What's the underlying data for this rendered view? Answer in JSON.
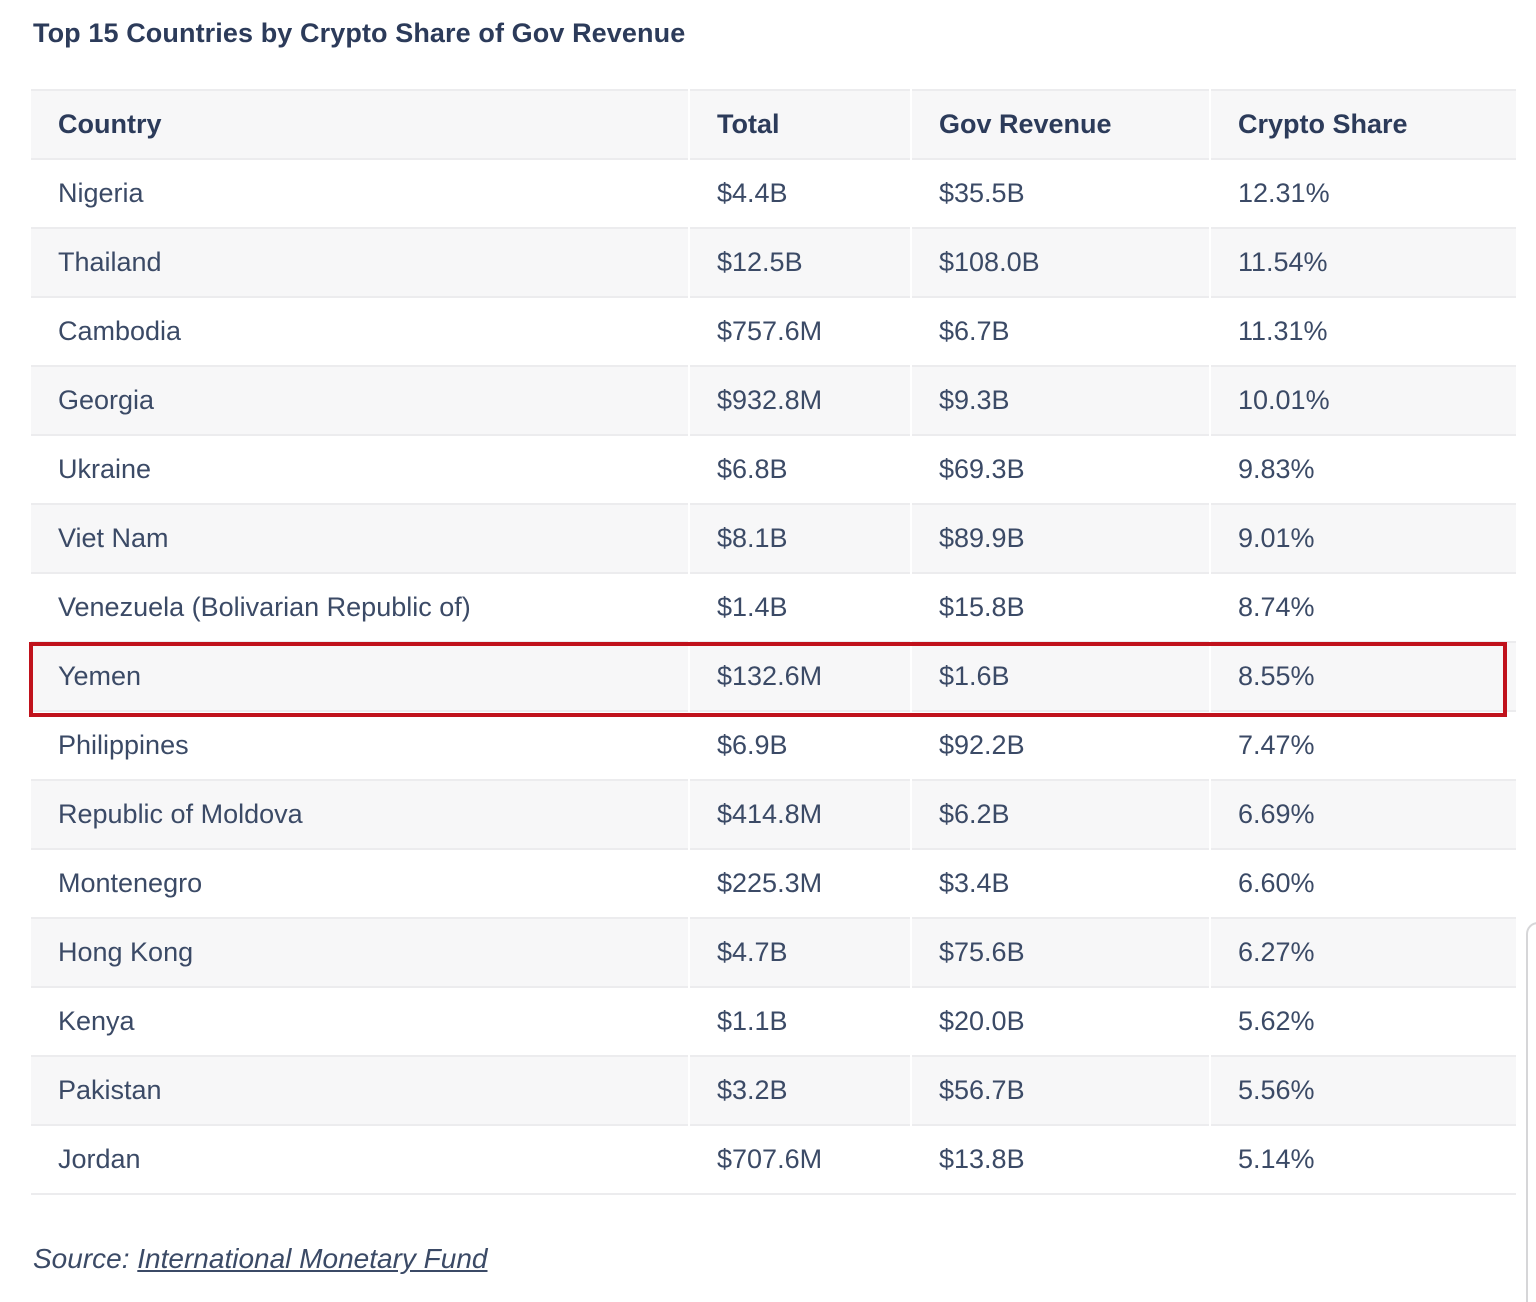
{
  "chart_data": {
    "type": "table",
    "title": "Top 15 Countries by Crypto Share of Gov Revenue",
    "columns": [
      "Country",
      "Total",
      "Gov Revenue",
      "Crypto Share"
    ],
    "rows": [
      [
        "Nigeria",
        "$4.4B",
        "$35.5B",
        "12.31%"
      ],
      [
        "Thailand",
        "$12.5B",
        "$108.0B",
        "11.54%"
      ],
      [
        "Cambodia",
        "$757.6M",
        "$6.7B",
        "11.31%"
      ],
      [
        "Georgia",
        "$932.8M",
        "$9.3B",
        "10.01%"
      ],
      [
        "Ukraine",
        "$6.8B",
        "$69.3B",
        "9.83%"
      ],
      [
        "Viet Nam",
        "$8.1B",
        "$89.9B",
        "9.01%"
      ],
      [
        "Venezuela (Bolivarian Republic of)",
        "$1.4B",
        "$15.8B",
        "8.74%"
      ],
      [
        "Yemen",
        "$132.6M",
        "$1.6B",
        "8.55%"
      ],
      [
        "Philippines",
        "$6.9B",
        "$92.2B",
        "7.47%"
      ],
      [
        "Republic of Moldova",
        "$414.8M",
        "$6.2B",
        "6.69%"
      ],
      [
        "Montenegro",
        "$225.3M",
        "$3.4B",
        "6.60%"
      ],
      [
        "Hong Kong",
        "$4.7B",
        "$75.6B",
        "6.27%"
      ],
      [
        "Kenya",
        "$1.1B",
        "$20.0B",
        "5.62%"
      ],
      [
        "Pakistan",
        "$3.2B",
        "$56.7B",
        "5.56%"
      ],
      [
        "Jordan",
        "$707.6M",
        "$13.8B",
        "5.14%"
      ]
    ],
    "highlighted_row": "Yemen",
    "highlight_color": "#c0121c"
  },
  "source": {
    "label": "Source:",
    "link_text": "International Monetary Fund"
  },
  "colors": {
    "header_text": "#2c3b5a",
    "body_text": "#3b4a66",
    "stripe": "#f7f7f8",
    "grid": "#ececee"
  }
}
